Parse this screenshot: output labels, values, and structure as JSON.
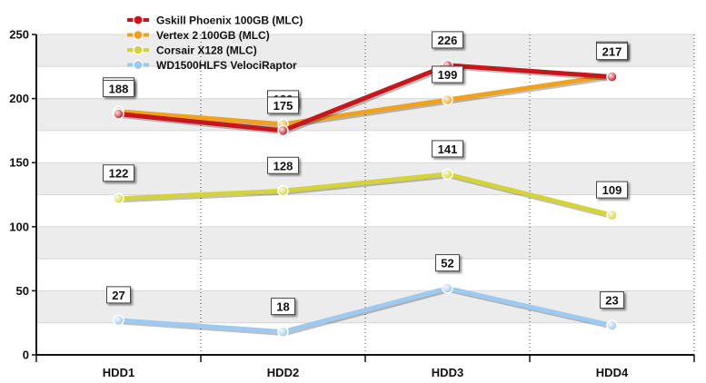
{
  "chart_data": {
    "type": "line",
    "categories": [
      "HDD1",
      "HDD2",
      "HDD3",
      "HDD4"
    ],
    "ylim": [
      0,
      250
    ],
    "yticks": [
      0,
      50,
      100,
      150,
      200,
      250
    ],
    "grid": "alternating horizontal bands, dotted vertical separators",
    "legend": "top-left",
    "series": [
      {
        "name": "Gskill Phoenix  100GB (MLC)",
        "color": "#c8161d",
        "values": [
          188,
          175,
          226,
          217
        ]
      },
      {
        "name": "Vertex 2 100GB (MLC)",
        "color": "#f0a21e",
        "values": [
          190,
          180,
          199,
          218
        ]
      },
      {
        "name": "Corsair X128 (MLC)",
        "color": "#d4d43a",
        "values": [
          122,
          128,
          141,
          109
        ]
      },
      {
        "name": "WD1500HLFS VelociRaptor",
        "color": "#9ccaf0",
        "values": [
          27,
          18,
          52,
          23
        ]
      }
    ]
  }
}
